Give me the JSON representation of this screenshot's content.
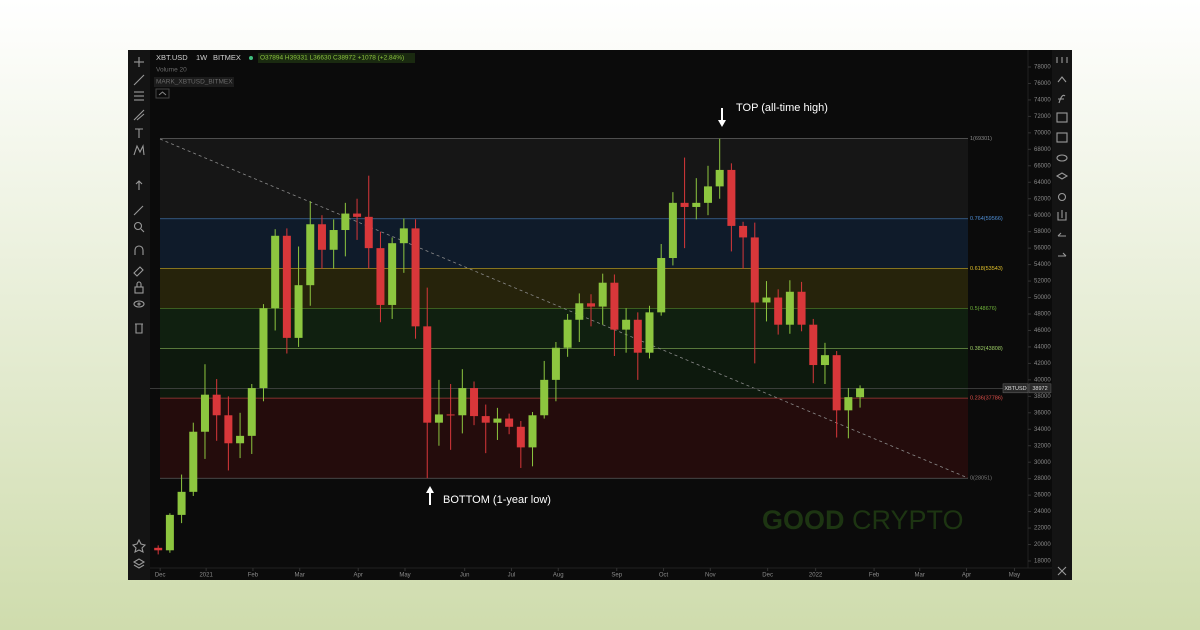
{
  "header": {
    "symbol": "XBT.USD",
    "interval": "1W",
    "exchange": "BITMEX",
    "ohlc": "O37894 H39331 L36630 C38972 +1078 (+2.84%)",
    "volume": "Volume 20",
    "mark": "MARK_XBTUSD_BITMEX"
  },
  "watermark": {
    "first": "GOOD",
    "second": "CRYPTO"
  },
  "chart_data": {
    "type": "candlestick",
    "up_color": "#8dc63f",
    "down_color": "#d8373a",
    "open": [
      19600,
      19300,
      23600,
      26400,
      33700,
      38200,
      35700,
      32300,
      33200,
      39000,
      48700,
      57500,
      45100,
      51500,
      58900,
      55800,
      58200,
      60200,
      59800,
      56000,
      49100,
      56600,
      58400,
      46500,
      34800,
      35800,
      35700,
      39000,
      35600,
      34800,
      35300,
      34300,
      31800,
      35700,
      40000,
      43900,
      47300,
      49300,
      48900,
      51800,
      46100,
      47300,
      43300,
      48200,
      54800,
      61500,
      61000,
      61500,
      63500,
      65500,
      58700,
      57300,
      49400,
      50000,
      46700,
      50700,
      46700,
      41800,
      43000,
      36300,
      37894
    ],
    "high": [
      19900,
      23800,
      28500,
      34800,
      41900,
      40100,
      38000,
      36000,
      39500,
      49200,
      58300,
      58400,
      56200,
      61700,
      60000,
      59500,
      61500,
      62000,
      64800,
      58000,
      57300,
      59600,
      59500,
      51200,
      40000,
      39500,
      41300,
      39800,
      37000,
      36600,
      35900,
      35000,
      36100,
      42300,
      44600,
      48000,
      50500,
      50400,
      52900,
      52800,
      48700,
      48200,
      49000,
      56500,
      62800,
      67000,
      64500,
      66000,
      69301,
      66300,
      59200,
      59100,
      52000,
      51000,
      52100,
      51900,
      47400,
      44500,
      43500,
      39000,
      39331
    ],
    "low": [
      18800,
      19000,
      22600,
      25900,
      30400,
      32600,
      29000,
      30500,
      31000,
      37400,
      46000,
      43200,
      44000,
      49000,
      53500,
      53500,
      55000,
      57000,
      53500,
      47000,
      47400,
      53000,
      45000,
      28051,
      32000,
      31500,
      33500,
      34500,
      31100,
      32700,
      33400,
      29300,
      29500,
      35300,
      37400,
      42800,
      44600,
      46500,
      46700,
      42900,
      43300,
      40000,
      42600,
      47800,
      53900,
      56000,
      59500,
      60000,
      62000,
      55600,
      53500,
      42000,
      47100,
      45500,
      45600,
      45900,
      39600,
      39500,
      33000,
      32900,
      36630
    ],
    "close": [
      19300,
      23600,
      26400,
      33700,
      38200,
      35700,
      32300,
      33200,
      39000,
      48700,
      57500,
      45100,
      51500,
      58900,
      55800,
      58200,
      60200,
      59800,
      56000,
      49100,
      56600,
      58400,
      46500,
      34800,
      35800,
      35700,
      39000,
      35600,
      34800,
      35300,
      34300,
      31800,
      35700,
      40000,
      43900,
      47300,
      49300,
      48900,
      51800,
      46100,
      47300,
      43300,
      48200,
      54800,
      61500,
      61000,
      61500,
      63500,
      65500,
      58700,
      57300,
      49400,
      50000,
      46700,
      50700,
      46700,
      41800,
      43000,
      36300,
      37900,
      38972
    ],
    "xlim": [
      -0.7,
      74.1
    ],
    "xticks": [
      {
        "value": 0.17,
        "label": "Dec"
      },
      {
        "value": 4.1,
        "label": "2021"
      },
      {
        "value": 8.1,
        "label": "Feb"
      },
      {
        "value": 12.1,
        "label": "Mar"
      },
      {
        "value": 17.1,
        "label": "Apr"
      },
      {
        "value": 21.1,
        "label": "May"
      },
      {
        "value": 26.2,
        "label": "Jun"
      },
      {
        "value": 30.2,
        "label": "Jul"
      },
      {
        "value": 34.2,
        "label": "Aug"
      },
      {
        "value": 39.2,
        "label": "Sep"
      },
      {
        "value": 43.2,
        "label": "Oct"
      },
      {
        "value": 47.2,
        "label": "Nov"
      },
      {
        "value": 52.1,
        "label": "Dec"
      },
      {
        "value": 56.2,
        "label": "2022"
      },
      {
        "value": 61.2,
        "label": "Feb"
      },
      {
        "value": 65.1,
        "label": "Mar"
      },
      {
        "value": 69.1,
        "label": "Apr"
      },
      {
        "value": 73.2,
        "label": "May"
      }
    ],
    "ylim": [
      18000,
      78000
    ],
    "yticks": [
      18000,
      20000,
      22000,
      24000,
      26000,
      28000,
      30000,
      32000,
      34000,
      36000,
      38000,
      40000,
      42000,
      44000,
      46000,
      48000,
      50000,
      52000,
      54000,
      56000,
      58000,
      60000,
      62000,
      64000,
      66000,
      68000,
      70000,
      72000,
      74000,
      76000,
      78000
    ],
    "grid": false,
    "fib_levels": [
      {
        "value": 69301,
        "label": "1(69301)",
        "color": "#8a8a8a",
        "band_color": "#161616"
      },
      {
        "value": 59566,
        "label": "0.764(59566)",
        "color": "#4f8fd6",
        "band_color": "#0f1b2a"
      },
      {
        "value": 53543,
        "label": "0.618(53543)",
        "color": "#e3c22b",
        "band_color": "#26230b"
      },
      {
        "value": 48676,
        "label": "0.5(48676)",
        "color": "#6fb23a",
        "band_color": "#102010"
      },
      {
        "value": 43808,
        "label": "0.382(43808)",
        "color": "#9ccc65",
        "band_color": "#0d190d"
      },
      {
        "value": 37786,
        "label": "0.236(37786)",
        "color": "#e0504a",
        "band_color": "#240c0c"
      },
      {
        "value": 28051,
        "label": "0(28051)",
        "color": "#7a7a7a"
      }
    ],
    "price_tag": {
      "label": "XBTUSD",
      "value": 38972
    },
    "annotations": {
      "top": "TOP (all-time high)",
      "bottom": "BOTTOM (1-year low)"
    }
  }
}
